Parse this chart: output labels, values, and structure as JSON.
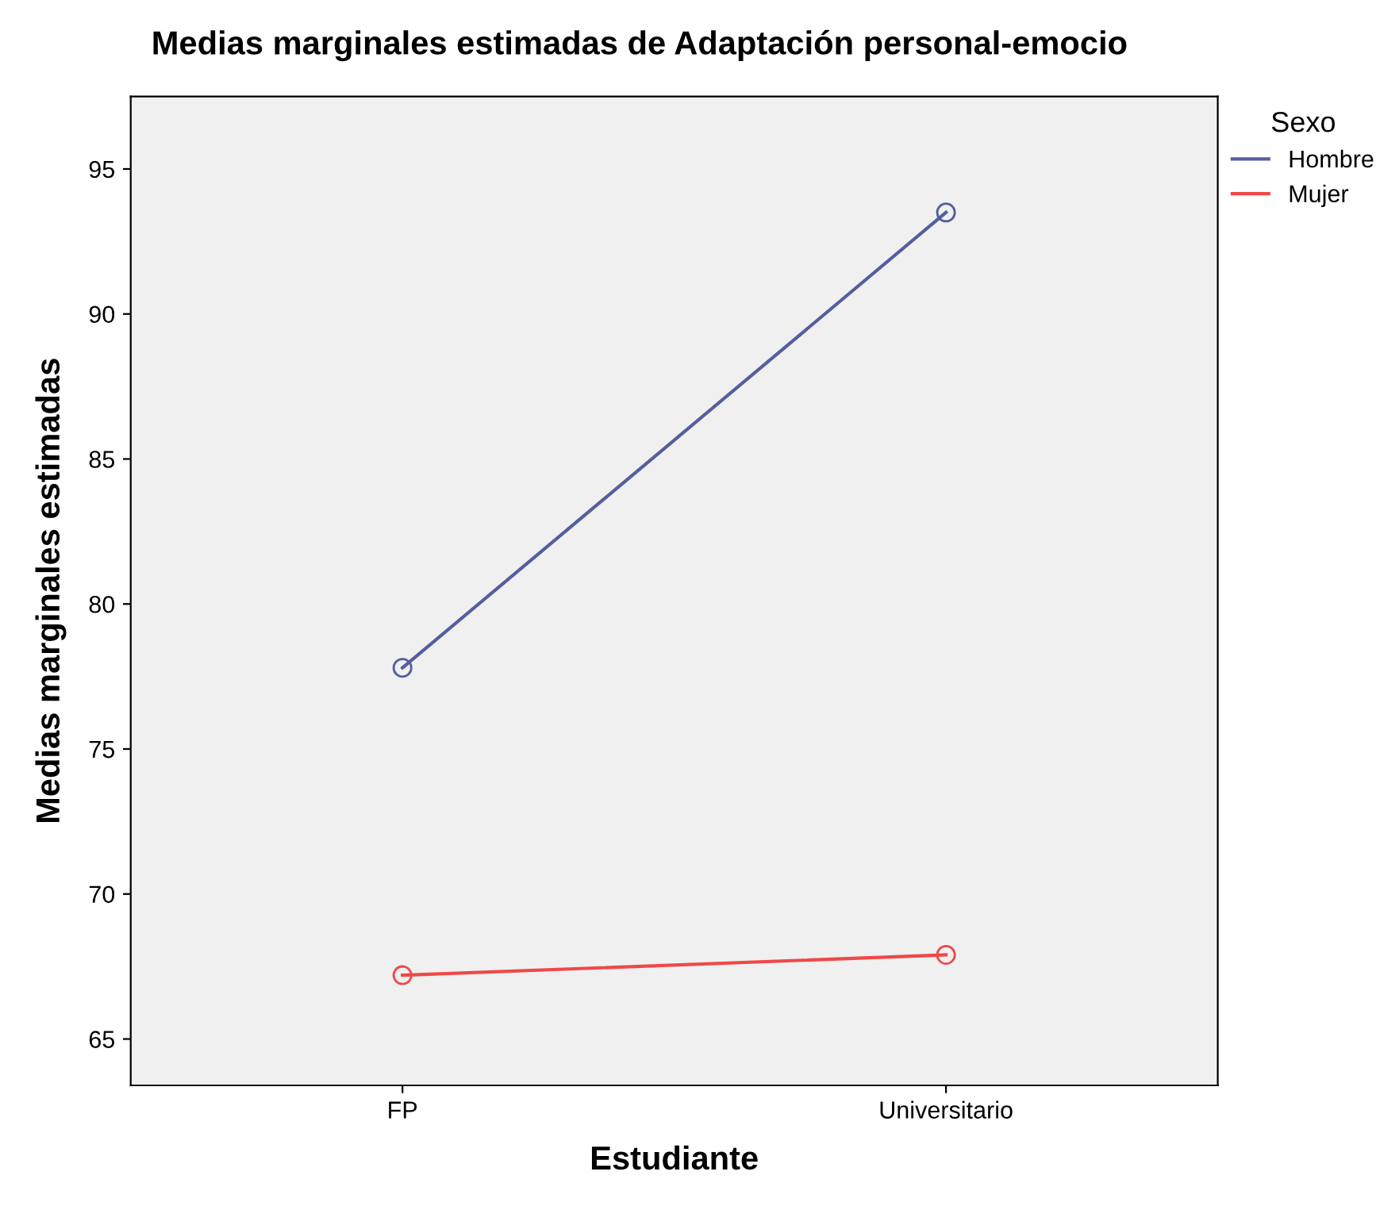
{
  "chart_data": {
    "type": "line",
    "title": "Medias marginales estimadas de Adaptación personal-emocio",
    "xlabel": "Estudiante",
    "ylabel": "Medias marginales estimadas",
    "legend_title": "Sexo",
    "categories": [
      "FP",
      "Universitario"
    ],
    "series": [
      {
        "name": "Hombre",
        "color": "#545ea0",
        "values": [
          77.8,
          93.5
        ]
      },
      {
        "name": "Mujer",
        "color": "#f04848",
        "values": [
          67.2,
          67.9
        ]
      }
    ],
    "ylim": [
      63.4,
      97.5
    ],
    "yticks": [
      65,
      70,
      75,
      80,
      85,
      90,
      95
    ],
    "marker": "circle",
    "line_style": "solid",
    "legend": "right",
    "grid": false
  }
}
